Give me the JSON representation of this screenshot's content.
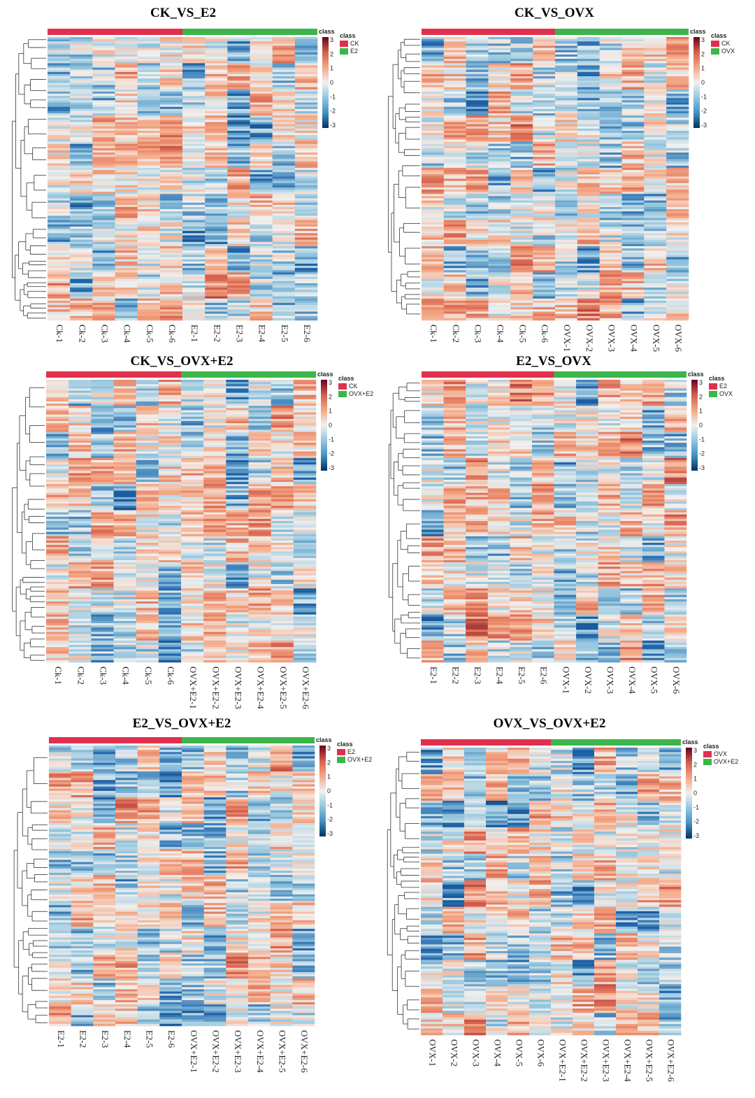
{
  "chart_data": [
    {
      "type": "heatmap",
      "title": "CK_VS_E2",
      "columns": [
        "Ck-1",
        "Ck-2",
        "Ck-3",
        "Ck-4",
        "Ck-5",
        "Ck-6",
        "E2-1",
        "E2-2",
        "E2-3",
        "E2-4",
        "E2-5",
        "E2-6"
      ],
      "groups": [
        {
          "name": "CK",
          "color": "#e0304e"
        },
        {
          "name": "E2",
          "color": "#3cb54a"
        }
      ],
      "annotation_title": "class",
      "legend_title": "class",
      "scale": {
        "min": -3,
        "max": 3,
        "ticks": [
          "3",
          "2",
          "1",
          "0",
          "-1",
          "-2",
          "-3"
        ]
      },
      "rows": 130,
      "seed": 11
    },
    {
      "type": "heatmap",
      "title": "CK_VS_OVX",
      "columns": [
        "Ck-1",
        "Ck-2",
        "Ck-3",
        "Ck-4",
        "Ck-5",
        "Ck-6",
        "OVX-1",
        "OVX-2",
        "OVX-3",
        "OVX-4",
        "OVX-5",
        "OVX-6"
      ],
      "groups": [
        {
          "name": "CK",
          "color": "#e0304e"
        },
        {
          "name": "OVX",
          "color": "#3cb54a"
        }
      ],
      "annotation_title": "class",
      "legend_title": "class",
      "scale": {
        "min": -3,
        "max": 3,
        "ticks": [
          "3",
          "2",
          "1",
          "0",
          "-1",
          "-2",
          "-3"
        ]
      },
      "rows": 130,
      "seed": 23
    },
    {
      "type": "heatmap",
      "title": "CK_VS_OVX+E2",
      "columns": [
        "Ck-1",
        "Ck-2",
        "Ck-3",
        "Ck-4",
        "Ck-5",
        "Ck-6",
        "OVX+E2-1",
        "OVX+E2-2",
        "OVX+E2-3",
        "OVX+E2-4",
        "OVX+E2-5",
        "OVX+E2-6"
      ],
      "groups": [
        {
          "name": "CK",
          "color": "#e0304e"
        },
        {
          "name": "OVX+E2",
          "color": "#3cb54a"
        }
      ],
      "annotation_title": "class",
      "legend_title": "class",
      "scale": {
        "min": -3,
        "max": 3,
        "ticks": [
          "3",
          "2",
          "1",
          "0",
          "-1",
          "-2",
          "-3"
        ]
      },
      "rows": 130,
      "seed": 37
    },
    {
      "type": "heatmap",
      "title": "E2_VS_OVX",
      "columns": [
        "E2-1",
        "E2-2",
        "E2-3",
        "E2-4",
        "E2-5",
        "E2-6",
        "OVX-1",
        "OVX-2",
        "OVX-3",
        "OVX-4",
        "OVX-5",
        "OVX-6"
      ],
      "groups": [
        {
          "name": "E2",
          "color": "#e0304e"
        },
        {
          "name": "OVX",
          "color": "#3cb54a"
        }
      ],
      "annotation_title": "class",
      "legend_title": "class",
      "scale": {
        "min": -3,
        "max": 3,
        "ticks": [
          "3",
          "2",
          "1",
          "0",
          "-1",
          "-2",
          "-3"
        ]
      },
      "rows": 130,
      "seed": 41
    },
    {
      "type": "heatmap",
      "title": "E2_VS_OVX+E2",
      "columns": [
        "E2-1",
        "E2-2",
        "E2-3",
        "E2-4",
        "E2-5",
        "E2-6",
        "OVX+E2-1",
        "OVX+E2-2",
        "OVX+E2-3",
        "OVX+E2-4",
        "OVX+E2-5",
        "OVX+E2-6"
      ],
      "groups": [
        {
          "name": "E2",
          "color": "#e0304e"
        },
        {
          "name": "OVX+E2",
          "color": "#3cb54a"
        }
      ],
      "annotation_title": "class",
      "legend_title": "class",
      "scale": {
        "min": -3,
        "max": 3,
        "ticks": [
          "3",
          "2",
          "1",
          "0",
          "-1",
          "-2",
          "-3"
        ]
      },
      "rows": 130,
      "seed": 53
    },
    {
      "type": "heatmap",
      "title": "OVX_VS_OVX+E2",
      "columns": [
        "OVX-1",
        "OVX-2",
        "OVX-3",
        "OVX-4",
        "OVX-5",
        "OVX-6",
        "OVX+E2-1",
        "OVX+E2-2",
        "OVX+E2-3",
        "OVX+E2-4",
        "OVX+E2-5",
        "OVX+E2-6"
      ],
      "groups": [
        {
          "name": "OVX",
          "color": "#e0304e"
        },
        {
          "name": "OVX+E2",
          "color": "#3cb54a"
        }
      ],
      "annotation_title": "class",
      "legend_title": "class",
      "scale": {
        "min": -3,
        "max": 3,
        "ticks": [
          "3",
          "2",
          "1",
          "0",
          "-1",
          "-2",
          "-3"
        ]
      },
      "rows": 130,
      "seed": 67
    }
  ]
}
